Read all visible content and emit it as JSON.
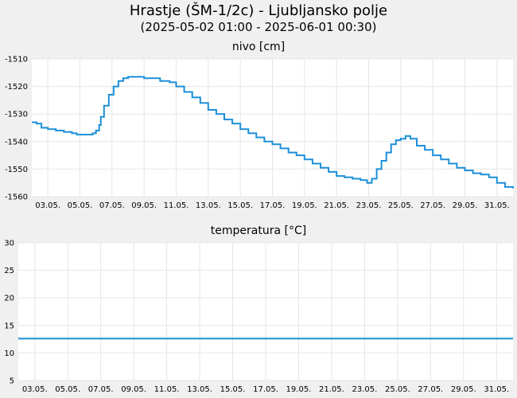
{
  "title": "Hrastje (ŠM-1/2c) - Ljubljansko polje",
  "subtitle": "(2025-05-02 01:00 - 2025-06-01 00:30)",
  "line_color": "#1b8fd8",
  "chart_data": [
    {
      "type": "line",
      "title": "nivo [cm]",
      "x_ticks": [
        "03.05.",
        "05.05.",
        "07.05.",
        "09.05.",
        "11.05.",
        "13.05.",
        "15.05.",
        "17.05.",
        "19.05.",
        "21.05.",
        "23.05.",
        "25.05.",
        "27.05.",
        "29.05.",
        "31.05."
      ],
      "x_tick_days": [
        3,
        5,
        7,
        9,
        11,
        13,
        15,
        17,
        19,
        21,
        23,
        25,
        27,
        29,
        31
      ],
      "xlim": [
        2.0,
        32.0
      ],
      "y_ticks": [
        -1510,
        -1520,
        -1530,
        -1540,
        -1550,
        -1560
      ],
      "ylim": [
        -1560,
        -1510
      ],
      "grid": true,
      "series": [
        {
          "x": [
            2.0,
            2.3,
            2.6,
            3.0,
            3.5,
            4.0,
            4.5,
            4.8,
            5.0,
            5.5,
            5.8,
            6.0,
            6.2,
            6.3,
            6.5,
            6.8,
            7.1,
            7.4,
            7.7,
            8.0,
            8.5,
            9.0,
            9.5,
            10.0,
            10.3,
            10.6,
            11.0,
            11.5,
            12.0,
            12.5,
            13.0,
            13.5,
            14.0,
            14.5,
            15.0,
            15.5,
            16.0,
            16.5,
            17.0,
            17.5,
            18.0,
            18.5,
            19.0,
            19.5,
            20.0,
            20.5,
            21.0,
            21.5,
            22.0,
            22.5,
            22.9,
            23.2,
            23.5,
            23.8,
            24.1,
            24.4,
            24.7,
            25.0,
            25.3,
            25.6,
            26.0,
            26.5,
            27.0,
            27.5,
            28.0,
            28.5,
            29.0,
            29.5,
            30.0,
            30.5,
            31.0,
            31.5,
            32.0
          ],
          "y": [
            -1533.0,
            -1533.5,
            -1535.0,
            -1535.5,
            -1536.0,
            -1536.5,
            -1537.0,
            -1537.5,
            -1537.5,
            -1537.5,
            -1537.0,
            -1536.0,
            -1534.0,
            -1531.0,
            -1527.0,
            -1523.0,
            -1520.0,
            -1518.0,
            -1517.0,
            -1516.5,
            -1516.5,
            -1517.0,
            -1517.0,
            -1518.0,
            -1518.0,
            -1518.5,
            -1520.0,
            -1522.0,
            -1524.0,
            -1526.0,
            -1528.5,
            -1530.0,
            -1532.0,
            -1533.5,
            -1535.5,
            -1537.0,
            -1538.5,
            -1540.0,
            -1541.0,
            -1542.5,
            -1544.0,
            -1545.0,
            -1546.5,
            -1548.0,
            -1549.5,
            -1551.0,
            -1552.5,
            -1553.0,
            -1553.5,
            -1554.0,
            -1555.0,
            -1553.5,
            -1550.0,
            -1547.0,
            -1544.0,
            -1541.0,
            -1539.5,
            -1539.0,
            -1538.0,
            -1539.0,
            -1541.5,
            -1543.0,
            -1545.0,
            -1546.5,
            -1548.0,
            -1549.5,
            -1550.5,
            -1551.5,
            -1552.0,
            -1553.0,
            -1555.0,
            -1556.5,
            -1557.0
          ]
        }
      ]
    },
    {
      "type": "line",
      "title": "temperatura [°C]",
      "x_ticks": [
        "03.05.",
        "05.05.",
        "07.05.",
        "09.05.",
        "11.05.",
        "13.05.",
        "15.05.",
        "17.05.",
        "19.05.",
        "21.05.",
        "23.05.",
        "25.05.",
        "27.05.",
        "29.05.",
        "31.05."
      ],
      "x_tick_days": [
        3,
        5,
        7,
        9,
        11,
        13,
        15,
        17,
        19,
        21,
        23,
        25,
        27,
        29,
        31
      ],
      "xlim": [
        2.0,
        32.0
      ],
      "y_ticks": [
        30,
        25,
        20,
        15,
        10,
        5
      ],
      "ylim": [
        5,
        30
      ],
      "grid": true,
      "series": [
        {
          "x": [
            2.0,
            32.0
          ],
          "y": [
            12.6,
            12.6
          ]
        }
      ]
    }
  ]
}
